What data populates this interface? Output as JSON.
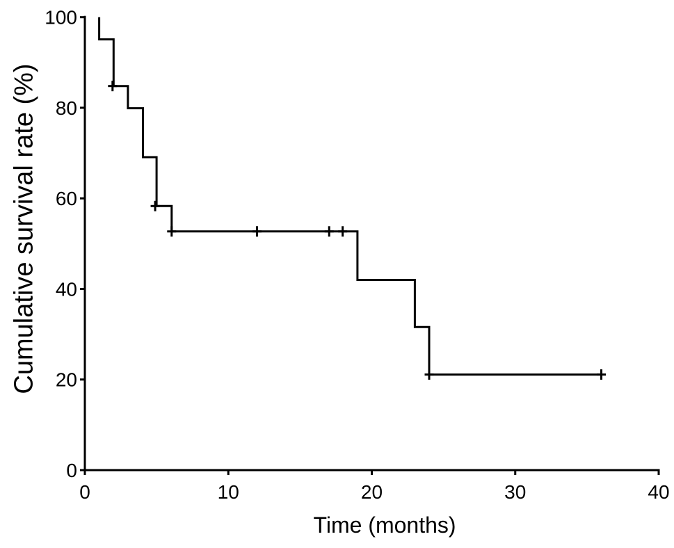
{
  "figure": {
    "background": "#ffffff",
    "ink_color": "#000000"
  },
  "chart_data": {
    "type": "line",
    "subtype": "kaplan-meier-step-curve",
    "title": "",
    "xlabel": "Time (months)",
    "ylabel": "Cumulative survival rate (%)",
    "xlim": [
      0,
      40
    ],
    "ylim": [
      0,
      100
    ],
    "x_ticks": [
      0,
      10,
      20,
      30,
      40
    ],
    "y_ticks": [
      0,
      20,
      40,
      60,
      80,
      100
    ],
    "grid": false,
    "legend": false,
    "series": [
      {
        "name": "Cumulative survival rate",
        "event_times_months": [
          1,
          2,
          3,
          4,
          5,
          6,
          19,
          23,
          24
        ],
        "survival_levels_pct": [
          100,
          95.1,
          84.8,
          79.9,
          69.1,
          58.3,
          52.7,
          42.0,
          31.6,
          21.1
        ],
        "steps": [
          {
            "x": 1,
            "y": 100
          },
          {
            "x": 1,
            "y": 95.1
          },
          {
            "x": 2,
            "y": 95.1
          },
          {
            "x": 2,
            "y": 84.8
          },
          {
            "x": 3,
            "y": 84.8
          },
          {
            "x": 3,
            "y": 79.9
          },
          {
            "x": 4.05,
            "y": 79.9
          },
          {
            "x": 4.05,
            "y": 69.1
          },
          {
            "x": 5,
            "y": 69.1
          },
          {
            "x": 5,
            "y": 58.3
          },
          {
            "x": 6.05,
            "y": 58.3
          },
          {
            "x": 6.05,
            "y": 52.7
          },
          {
            "x": 19,
            "y": 52.7
          },
          {
            "x": 19,
            "y": 42.0
          },
          {
            "x": 23,
            "y": 42.0
          },
          {
            "x": 23,
            "y": 31.6
          },
          {
            "x": 24,
            "y": 31.6
          },
          {
            "x": 24,
            "y": 21.1
          },
          {
            "x": 36,
            "y": 21.1
          }
        ],
        "censor_marks": [
          {
            "x": 1.93,
            "y": 84.8
          },
          {
            "x": 4.9,
            "y": 58.3
          },
          {
            "x": 6.05,
            "y": 52.7
          },
          {
            "x": 12,
            "y": 52.7
          },
          {
            "x": 17.03,
            "y": 52.7
          },
          {
            "x": 17.97,
            "y": 52.7
          },
          {
            "x": 24,
            "y": 21.1
          },
          {
            "x": 36,
            "y": 21.1
          }
        ]
      }
    ]
  }
}
